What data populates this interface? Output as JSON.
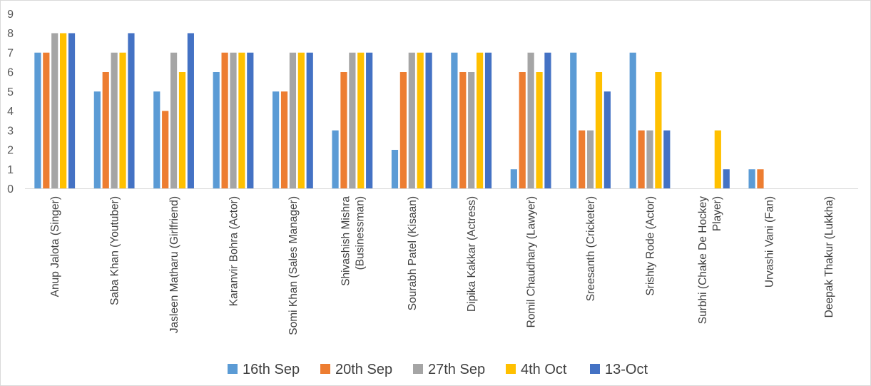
{
  "chart_data": {
    "type": "bar",
    "title": "",
    "xlabel": "",
    "ylabel": "",
    "ylim": [
      0,
      9
    ],
    "yticks": [
      0,
      1,
      2,
      3,
      4,
      5,
      6,
      7,
      8,
      9
    ],
    "grid": false,
    "legend_position": "bottom",
    "categories": [
      [
        "Anup Jalota (Singer)"
      ],
      [
        "Saba Khan (Youtuber)"
      ],
      [
        "Jasleen Matharu (Girlfriend)"
      ],
      [
        "Karanvir Bohra (Actor)"
      ],
      [
        "Somi Khan (Sales Manager)"
      ],
      [
        "Shivashish Mishra",
        "(Businessman)"
      ],
      [
        "Sourabh Patel (Kisaan)"
      ],
      [
        "Dipika Kakkar (Actress)"
      ],
      [
        "Romil Chaudhary (Lawyer)"
      ],
      [
        "Sreesanth (Cricketer)"
      ],
      [
        "Srishty Rode (Actor)"
      ],
      [
        "Surbhi (Chake De Hockey",
        "Player)"
      ],
      [
        "Urvashi Vani (Fan)"
      ],
      [
        "Deepak Thakur (Lukkha)"
      ]
    ],
    "series": [
      {
        "name": "16th Sep",
        "color": "#5b9bd5",
        "values": [
          7,
          5,
          5,
          6,
          5,
          3,
          2,
          7,
          1,
          7,
          7,
          0,
          1,
          0
        ]
      },
      {
        "name": "20th Sep",
        "color": "#ed7d31",
        "values": [
          7,
          6,
          4,
          7,
          5,
          6,
          6,
          6,
          6,
          3,
          3,
          0,
          1,
          0
        ]
      },
      {
        "name": "27th Sep",
        "color": "#a5a5a5",
        "values": [
          8,
          7,
          7,
          7,
          7,
          7,
          7,
          6,
          7,
          3,
          3,
          0,
          0,
          0
        ]
      },
      {
        "name": "4th Oct",
        "color": "#ffc000",
        "values": [
          8,
          7,
          6,
          7,
          7,
          7,
          7,
          7,
          6,
          6,
          6,
          3,
          0,
          0
        ]
      },
      {
        "name": "13-Oct",
        "color": "#4472c4",
        "values": [
          8,
          8,
          8,
          7,
          7,
          7,
          7,
          7,
          7,
          5,
          3,
          1,
          0,
          0
        ]
      }
    ]
  }
}
